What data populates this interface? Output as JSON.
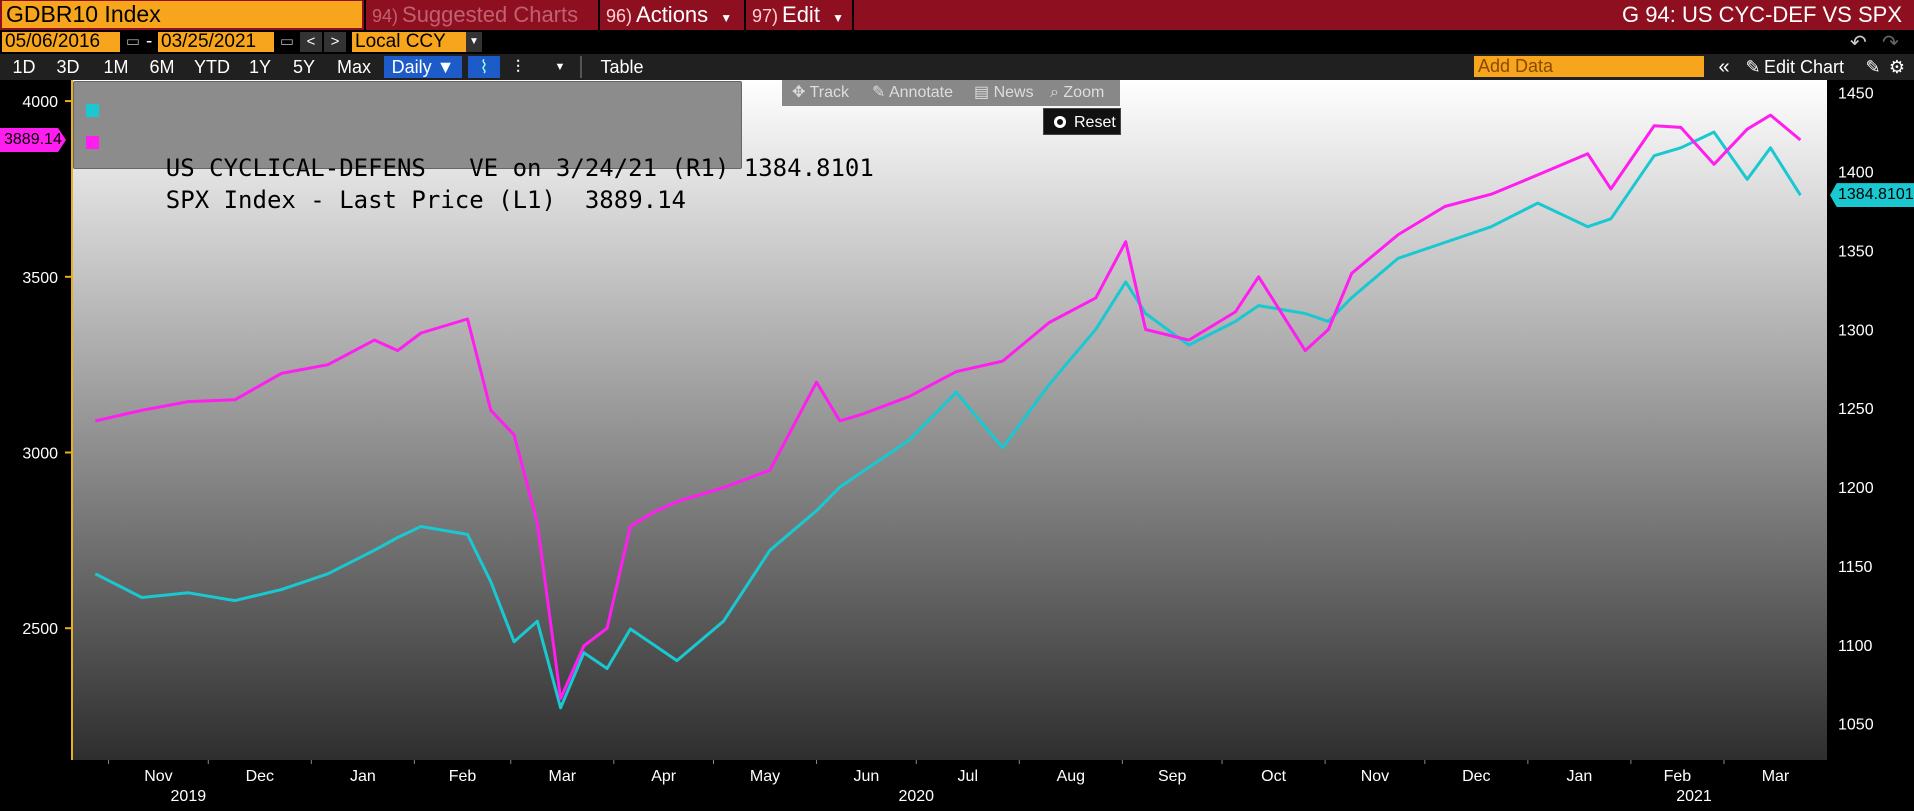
{
  "header": {
    "ticker": "GDBR10 Index",
    "menus": [
      {
        "num": "94)",
        "label": "Suggested Charts"
      },
      {
        "num": "96)",
        "label": "Actions"
      },
      {
        "num": "97)",
        "label": "Edit"
      }
    ],
    "graph_title": "G 94: US CYC-DEF VS SPX"
  },
  "datebar": {
    "start_date": "05/06/2016",
    "dash": "-",
    "end_date": "03/25/2021",
    "currency": "Local CCY"
  },
  "periodbar": {
    "periods": [
      "1D",
      "3D",
      "1M",
      "6M",
      "YTD",
      "1Y",
      "5Y",
      "Max"
    ],
    "frequency": "Daily ▼",
    "table": "Table",
    "add_data_placeholder": "Add Data",
    "edit_chart": "Edit Chart"
  },
  "tools": {
    "track": "Track",
    "annotate": "Annotate",
    "news": "News",
    "zoom": "Zoom",
    "reset": "Reset"
  },
  "legend": [
    {
      "label": "US CYCLICAL-DEFENS   VE on 3/24/21 (R1)",
      "value": "1384.8101",
      "color": "#19c8d0"
    },
    {
      "label": "SPX Index - Last Price (L1)",
      "value": "3889.14",
      "color": "#ff1df0"
    }
  ],
  "chart_data": {
    "type": "line",
    "x_ticks": [
      "Nov",
      "Dec",
      "Jan",
      "Feb",
      "Mar",
      "Apr",
      "May",
      "Jun",
      "Jul",
      "Aug",
      "Sep",
      "Oct",
      "Nov",
      "Dec",
      "Jan",
      "Feb",
      "Mar"
    ],
    "year_labels": [
      "2019",
      "2020",
      "2021"
    ],
    "y_left_ticks": [
      "2500",
      "3000",
      "3500",
      "4000"
    ],
    "y_left_range": [
      2125,
      4060
    ],
    "y_right_ticks": [
      "1050",
      "1100",
      "1150",
      "1200",
      "1250",
      "1300",
      "1350",
      "1400",
      "1450"
    ],
    "y_right_range": [
      1027,
      1458
    ],
    "x": [
      "2019-10-28",
      "2019-11-11",
      "2019-11-25",
      "2019-12-09",
      "2019-12-23",
      "2020-01-06",
      "2020-01-20",
      "2020-01-27",
      "2020-02-03",
      "2020-02-17",
      "2020-02-24",
      "2020-03-02",
      "2020-03-09",
      "2020-03-16",
      "2020-03-23",
      "2020-03-30",
      "2020-04-06",
      "2020-04-13",
      "2020-04-20",
      "2020-05-04",
      "2020-05-18",
      "2020-06-01",
      "2020-06-08",
      "2020-06-15",
      "2020-06-29",
      "2020-07-13",
      "2020-07-27",
      "2020-08-10",
      "2020-08-24",
      "2020-09-02",
      "2020-09-08",
      "2020-09-21",
      "2020-10-05",
      "2020-10-12",
      "2020-10-26",
      "2020-11-02",
      "2020-11-09",
      "2020-11-23",
      "2020-12-07",
      "2020-12-21",
      "2021-01-04",
      "2021-01-19",
      "2021-01-26",
      "2021-02-08",
      "2021-02-16",
      "2021-02-26",
      "2021-03-08",
      "2021-03-15",
      "2021-03-24"
    ],
    "series": [
      {
        "name": "US CYCLICAL-DEFENS   VE on 3/24/21 (R1)",
        "axis": "right",
        "color": "#19c8d0",
        "values": [
          1145,
          1130,
          1133,
          1128,
          1135,
          1145,
          1160,
          1168,
          1175,
          1170,
          1140,
          1102,
          1115,
          1060,
          1095,
          1085,
          1110,
          1100,
          1090,
          1115,
          1160,
          1185,
          1200,
          1210,
          1230,
          1260,
          1225,
          1265,
          1300,
          1330,
          1310,
          1290,
          1305,
          1315,
          1310,
          1305,
          1320,
          1345,
          1355,
          1365,
          1380,
          1365,
          1370,
          1410,
          1415,
          1425,
          1395,
          1415,
          1385
        ]
      },
      {
        "name": "SPX Index - Last Price (L1)",
        "axis": "left",
        "color": "#ff1df0",
        "values": [
          3090,
          3120,
          3145,
          3150,
          3225,
          3250,
          3320,
          3290,
          3340,
          3380,
          3120,
          3050,
          2800,
          2300,
          2450,
          2500,
          2790,
          2830,
          2860,
          2900,
          2950,
          3200,
          3090,
          3110,
          3160,
          3230,
          3260,
          3370,
          3440,
          3600,
          3350,
          3320,
          3400,
          3500,
          3290,
          3350,
          3510,
          3620,
          3700,
          3735,
          3790,
          3850,
          3750,
          3930,
          3925,
          3820,
          3920,
          3960,
          3889.14
        ]
      }
    ],
    "last_value_tags": {
      "left": "3889.14",
      "right": "1384.8101"
    }
  }
}
